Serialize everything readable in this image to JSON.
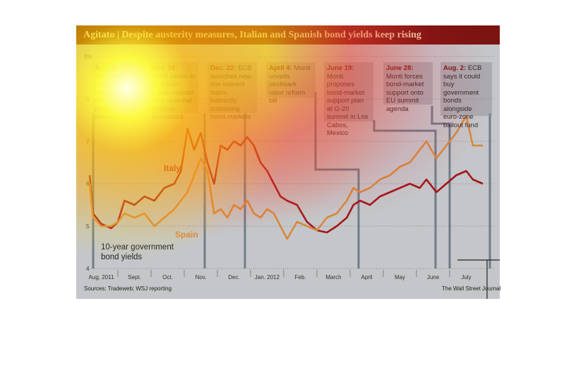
{
  "title": "Agitato | Despite austerity measures, Italian and Spanish bond yields keep rising",
  "annotations": [
    {
      "date": "Aug. 8:",
      "text": "ECB buys Italian and Spanish bonds after both countries promise reforms"
    },
    {
      "date": "Nov. 16:",
      "text": "Monti sworn in as Italian prime minister after downfall of Silvio Berlusconi"
    },
    {
      "date": "Dec. 22:",
      "text": "ECB launches new low-interest loans, indirectly stabilizing bond markets"
    },
    {
      "date": "April 4:",
      "text": "Monti unveils landmark labor reform bill"
    },
    {
      "date": "June 19:",
      "text": "Monti proposes bond-market support plan at G-20 summit in Los Cabos, Mexico"
    },
    {
      "date": "June 28:",
      "text": "Monti forces bond-market support onto EU summit agenda"
    },
    {
      "date": "Aug. 2:",
      "text": "ECB says it could buy government bonds alongside euro-zone bailout fund"
    }
  ],
  "source": "Sources: Tradeweb; WSJ reporting",
  "credit": "The Wall Street Journal",
  "chart_data": {
    "type": "line",
    "title": "Agitato | Despite austerity measures, Italian and Spanish bond yields keep rising",
    "ylabel": "10-year government bond yields",
    "ylim": [
      4,
      9
    ],
    "yticks": [
      "9%",
      "8",
      "7",
      "6",
      "5",
      "4"
    ],
    "xticks": [
      "Aug. 2011",
      "Sept.",
      "Oct.",
      "Nov.",
      "Dec.",
      "Jan. 2012",
      "Feb.",
      "March",
      "April",
      "May",
      "June",
      "July"
    ],
    "x_unit": "months since Aug 1, 2011",
    "series": [
      {
        "name": "Italy",
        "color": "#a3161a",
        "points": [
          [
            0.15,
            6.2
          ],
          [
            0.25,
            5.3
          ],
          [
            0.5,
            5.05
          ],
          [
            0.8,
            4.95
          ],
          [
            1.0,
            5.1
          ],
          [
            1.2,
            5.6
          ],
          [
            1.5,
            5.5
          ],
          [
            1.8,
            5.7
          ],
          [
            2.1,
            5.6
          ],
          [
            2.4,
            5.9
          ],
          [
            2.7,
            6.0
          ],
          [
            2.9,
            6.3
          ],
          [
            3.1,
            7.3
          ],
          [
            3.3,
            6.8
          ],
          [
            3.5,
            7.2
          ],
          [
            3.7,
            6.5
          ],
          [
            3.9,
            6.0
          ],
          [
            4.1,
            6.9
          ],
          [
            4.3,
            6.8
          ],
          [
            4.5,
            7.0
          ],
          [
            4.7,
            6.9
          ],
          [
            4.9,
            7.1
          ],
          [
            5.1,
            6.9
          ],
          [
            5.3,
            6.5
          ],
          [
            5.5,
            6.3
          ],
          [
            5.7,
            6.0
          ],
          [
            5.9,
            5.7
          ],
          [
            6.1,
            5.6
          ],
          [
            6.4,
            5.5
          ],
          [
            6.7,
            5.1
          ],
          [
            7.0,
            4.9
          ],
          [
            7.3,
            4.85
          ],
          [
            7.6,
            5.0
          ],
          [
            7.9,
            5.2
          ],
          [
            8.1,
            5.5
          ],
          [
            8.3,
            5.6
          ],
          [
            8.6,
            5.5
          ],
          [
            8.9,
            5.7
          ],
          [
            9.2,
            5.8
          ],
          [
            9.5,
            5.9
          ],
          [
            9.8,
            6.0
          ],
          [
            10.1,
            5.9
          ],
          [
            10.3,
            6.1
          ],
          [
            10.6,
            5.8
          ],
          [
            10.9,
            6.0
          ],
          [
            11.2,
            6.2
          ],
          [
            11.5,
            6.3
          ],
          [
            11.7,
            6.1
          ],
          [
            12.0,
            6.0
          ]
        ]
      },
      {
        "name": "Spain",
        "color": "#d8883c",
        "points": [
          [
            0.15,
            6.0
          ],
          [
            0.25,
            5.2
          ],
          [
            0.5,
            5.0
          ],
          [
            0.8,
            5.0
          ],
          [
            1.0,
            5.1
          ],
          [
            1.2,
            5.3
          ],
          [
            1.5,
            5.2
          ],
          [
            1.8,
            5.3
          ],
          [
            2.1,
            5.0
          ],
          [
            2.4,
            5.2
          ],
          [
            2.7,
            5.4
          ],
          [
            2.9,
            5.6
          ],
          [
            3.1,
            5.8
          ],
          [
            3.3,
            6.2
          ],
          [
            3.5,
            6.6
          ],
          [
            3.7,
            6.3
          ],
          [
            3.9,
            5.3
          ],
          [
            4.1,
            5.4
          ],
          [
            4.3,
            5.2
          ],
          [
            4.5,
            5.5
          ],
          [
            4.7,
            5.4
          ],
          [
            4.9,
            5.6
          ],
          [
            5.1,
            5.3
          ],
          [
            5.3,
            5.2
          ],
          [
            5.5,
            5.4
          ],
          [
            5.7,
            5.3
          ],
          [
            5.9,
            5.0
          ],
          [
            6.1,
            4.7
          ],
          [
            6.4,
            5.1
          ],
          [
            6.7,
            5.0
          ],
          [
            7.0,
            4.9
          ],
          [
            7.3,
            5.2
          ],
          [
            7.6,
            5.3
          ],
          [
            7.9,
            5.6
          ],
          [
            8.1,
            5.9
          ],
          [
            8.3,
            5.8
          ],
          [
            8.6,
            5.9
          ],
          [
            8.9,
            6.1
          ],
          [
            9.2,
            6.2
          ],
          [
            9.5,
            6.4
          ],
          [
            9.8,
            6.5
          ],
          [
            10.1,
            6.8
          ],
          [
            10.3,
            7.0
          ],
          [
            10.6,
            6.6
          ],
          [
            10.9,
            6.9
          ],
          [
            11.2,
            7.2
          ],
          [
            11.5,
            7.6
          ],
          [
            11.7,
            6.9
          ],
          [
            12.0,
            6.9
          ]
        ]
      }
    ],
    "labels": {
      "italy": "Italy",
      "spain": "Spain"
    }
  }
}
